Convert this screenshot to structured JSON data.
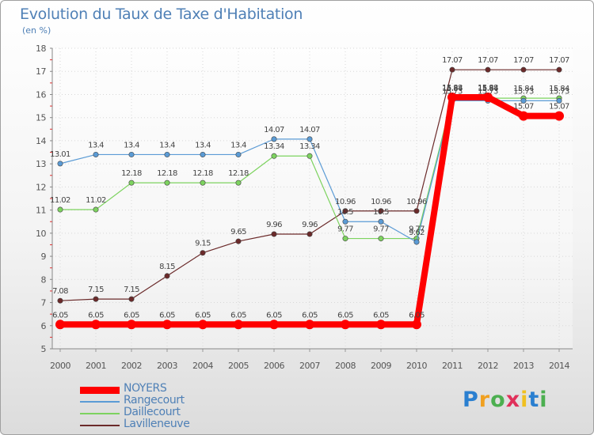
{
  "title": "Evolution du Taux de Taxe d'Habitation",
  "unit": "(en %)",
  "logo": "Proxiti",
  "chart_data": {
    "type": "line",
    "x": [
      2000,
      2001,
      2002,
      2003,
      2004,
      2005,
      2006,
      2007,
      2008,
      2009,
      2010,
      2011,
      2012,
      2013,
      2014
    ],
    "ylim": [
      5,
      18
    ],
    "yticks": [
      5,
      6,
      7,
      8,
      9,
      10,
      11,
      12,
      13,
      14,
      15,
      16,
      17,
      18
    ],
    "grid": true,
    "legend_position": "bottom-left",
    "series": [
      {
        "name": "NOYERS",
        "color": "#ff0000",
        "width": 8,
        "values": [
          6.05,
          6.05,
          6.05,
          6.05,
          6.05,
          6.05,
          6.05,
          6.05,
          6.05,
          6.05,
          6.05,
          15.88,
          15.88,
          15.07,
          15.07
        ],
        "labels": [
          "6.05",
          "6.05",
          "6.05",
          "6.05",
          "6.05",
          "6.05",
          "6.05",
          "6.05",
          "6.05",
          "6.05",
          "6.05",
          "15.88",
          "15.88",
          "15.07",
          "15.07"
        ]
      },
      {
        "name": "Rangecourt",
        "color": "#5b9bd5",
        "width": 1.2,
        "values": [
          13.01,
          13.4,
          13.4,
          13.4,
          13.4,
          13.4,
          14.07,
          14.07,
          10.5,
          10.5,
          9.62,
          15.73,
          15.73,
          15.73,
          15.73
        ],
        "labels": [
          "13.01",
          "13.4",
          "13.4",
          "13.4",
          "13.4",
          "13.4",
          "14.07",
          "14.07",
          "10.5",
          "10.5",
          "9.62",
          "15.73",
          "15.73",
          "15.73",
          "15.73"
        ]
      },
      {
        "name": "Daillecourt",
        "color": "#7dd35f",
        "width": 1.2,
        "values": [
          11.02,
          11.02,
          12.18,
          12.18,
          12.18,
          12.18,
          13.34,
          13.34,
          9.77,
          9.77,
          9.77,
          15.84,
          15.84,
          15.84,
          15.84
        ],
        "labels": [
          "11.02",
          "11.02",
          "12.18",
          "12.18",
          "12.18",
          "12.18",
          "13.34",
          "13.34",
          "9.77",
          "9.77",
          "9.77",
          "15.84",
          "15.84",
          "15.84",
          "15.84"
        ]
      },
      {
        "name": "Lavilleneuve",
        "color": "#6b2a2a",
        "width": 1.2,
        "values": [
          7.08,
          7.15,
          7.15,
          8.15,
          9.15,
          9.65,
          9.96,
          9.96,
          10.96,
          10.96,
          10.96,
          17.07,
          17.07,
          17.07,
          17.07
        ],
        "labels": [
          "7.08",
          "7.15",
          "7.15",
          "8.15",
          "9.15",
          "9.65",
          "9.96",
          "9.96",
          "10.96",
          "10.96",
          "10.96",
          "17.07",
          "17.07",
          "17.07",
          "17.07"
        ]
      }
    ]
  }
}
